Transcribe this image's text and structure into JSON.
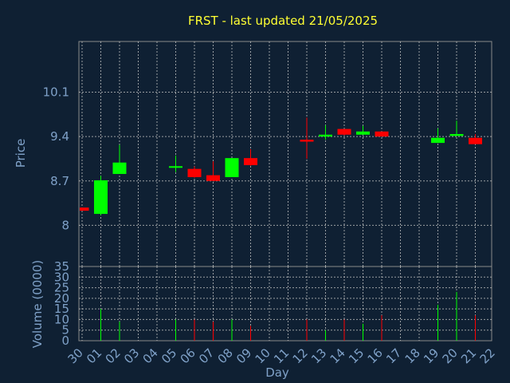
{
  "chart_data": {
    "type": "candlestick",
    "title": "FRST - last updated 21/05/2025",
    "xlabel": "Day",
    "x_ticks": [
      "30",
      "01",
      "02",
      "03",
      "04",
      "05",
      "06",
      "07",
      "08",
      "09",
      "10",
      "11",
      "12",
      "13",
      "14",
      "15",
      "16",
      "17",
      "18",
      "19",
      "20",
      "21",
      "22"
    ],
    "price_panel": {
      "ylabel": "Price",
      "ylim": [
        7.35,
        10.9
      ],
      "y_ticks": [
        8,
        8.7,
        9.4,
        10.1
      ],
      "y_tick_labels": [
        "8",
        "8.7",
        "9.4",
        "10.1"
      ],
      "grid": true
    },
    "volume_panel": {
      "ylabel": "Volume (0000)",
      "ylim": [
        0,
        35
      ],
      "y_ticks": [
        0,
        5,
        10,
        15,
        20,
        25,
        30,
        35
      ],
      "y_tick_labels": [
        "0",
        "5",
        "10",
        "15",
        "20",
        "25",
        "30",
        "35"
      ],
      "grid": true
    },
    "colors": {
      "up": "#00ff00",
      "down": "#ff0000",
      "background": "#0f2033",
      "title": "#ffff33",
      "text": "#7fa1c8"
    },
    "candles": [
      {
        "day": "30",
        "open": 8.28,
        "close": 8.23,
        "high": 8.28,
        "low": 8.23,
        "volume": 0
      },
      {
        "day": "01",
        "open": 8.18,
        "close": 8.71,
        "high": 8.78,
        "low": 8.16,
        "volume": 15
      },
      {
        "day": "02",
        "open": 8.81,
        "close": 8.99,
        "high": 9.27,
        "low": 8.81,
        "volume": 9
      },
      {
        "day": "05",
        "open": 8.91,
        "close": 8.92,
        "high": 9.1,
        "low": 8.84,
        "volume": 10
      },
      {
        "day": "06",
        "open": 8.89,
        "close": 8.76,
        "high": 8.93,
        "low": 8.75,
        "volume": 10
      },
      {
        "day": "07",
        "open": 8.79,
        "close": 8.7,
        "high": 9.01,
        "low": 8.7,
        "volume": 9
      },
      {
        "day": "08",
        "open": 8.76,
        "close": 9.06,
        "high": 9.06,
        "low": 8.76,
        "volume": 10
      },
      {
        "day": "09",
        "open": 9.06,
        "close": 8.95,
        "high": 9.2,
        "low": 8.94,
        "volume": 7
      },
      {
        "day": "12",
        "open": 9.35,
        "close": 9.32,
        "high": 9.7,
        "low": 9.05,
        "volume": 10
      },
      {
        "day": "13",
        "open": 9.4,
        "close": 9.43,
        "high": 9.58,
        "low": 9.35,
        "volume": 5
      },
      {
        "day": "14",
        "open": 9.52,
        "close": 9.43,
        "high": 9.52,
        "low": 9.42,
        "volume": 10
      },
      {
        "day": "15",
        "open": 9.43,
        "close": 9.48,
        "high": 9.57,
        "low": 9.43,
        "volume": 8
      },
      {
        "day": "16",
        "open": 9.48,
        "close": 9.4,
        "high": 9.48,
        "low": 9.4,
        "volume": 12
      },
      {
        "day": "19",
        "open": 9.3,
        "close": 9.38,
        "high": 9.53,
        "low": 9.3,
        "volume": 17
      },
      {
        "day": "20",
        "open": 9.41,
        "close": 9.44,
        "high": 9.65,
        "low": 9.41,
        "volume": 23
      },
      {
        "day": "21",
        "open": 9.38,
        "close": 9.28,
        "high": 9.44,
        "low": 9.28,
        "volume": 12
      }
    ]
  }
}
